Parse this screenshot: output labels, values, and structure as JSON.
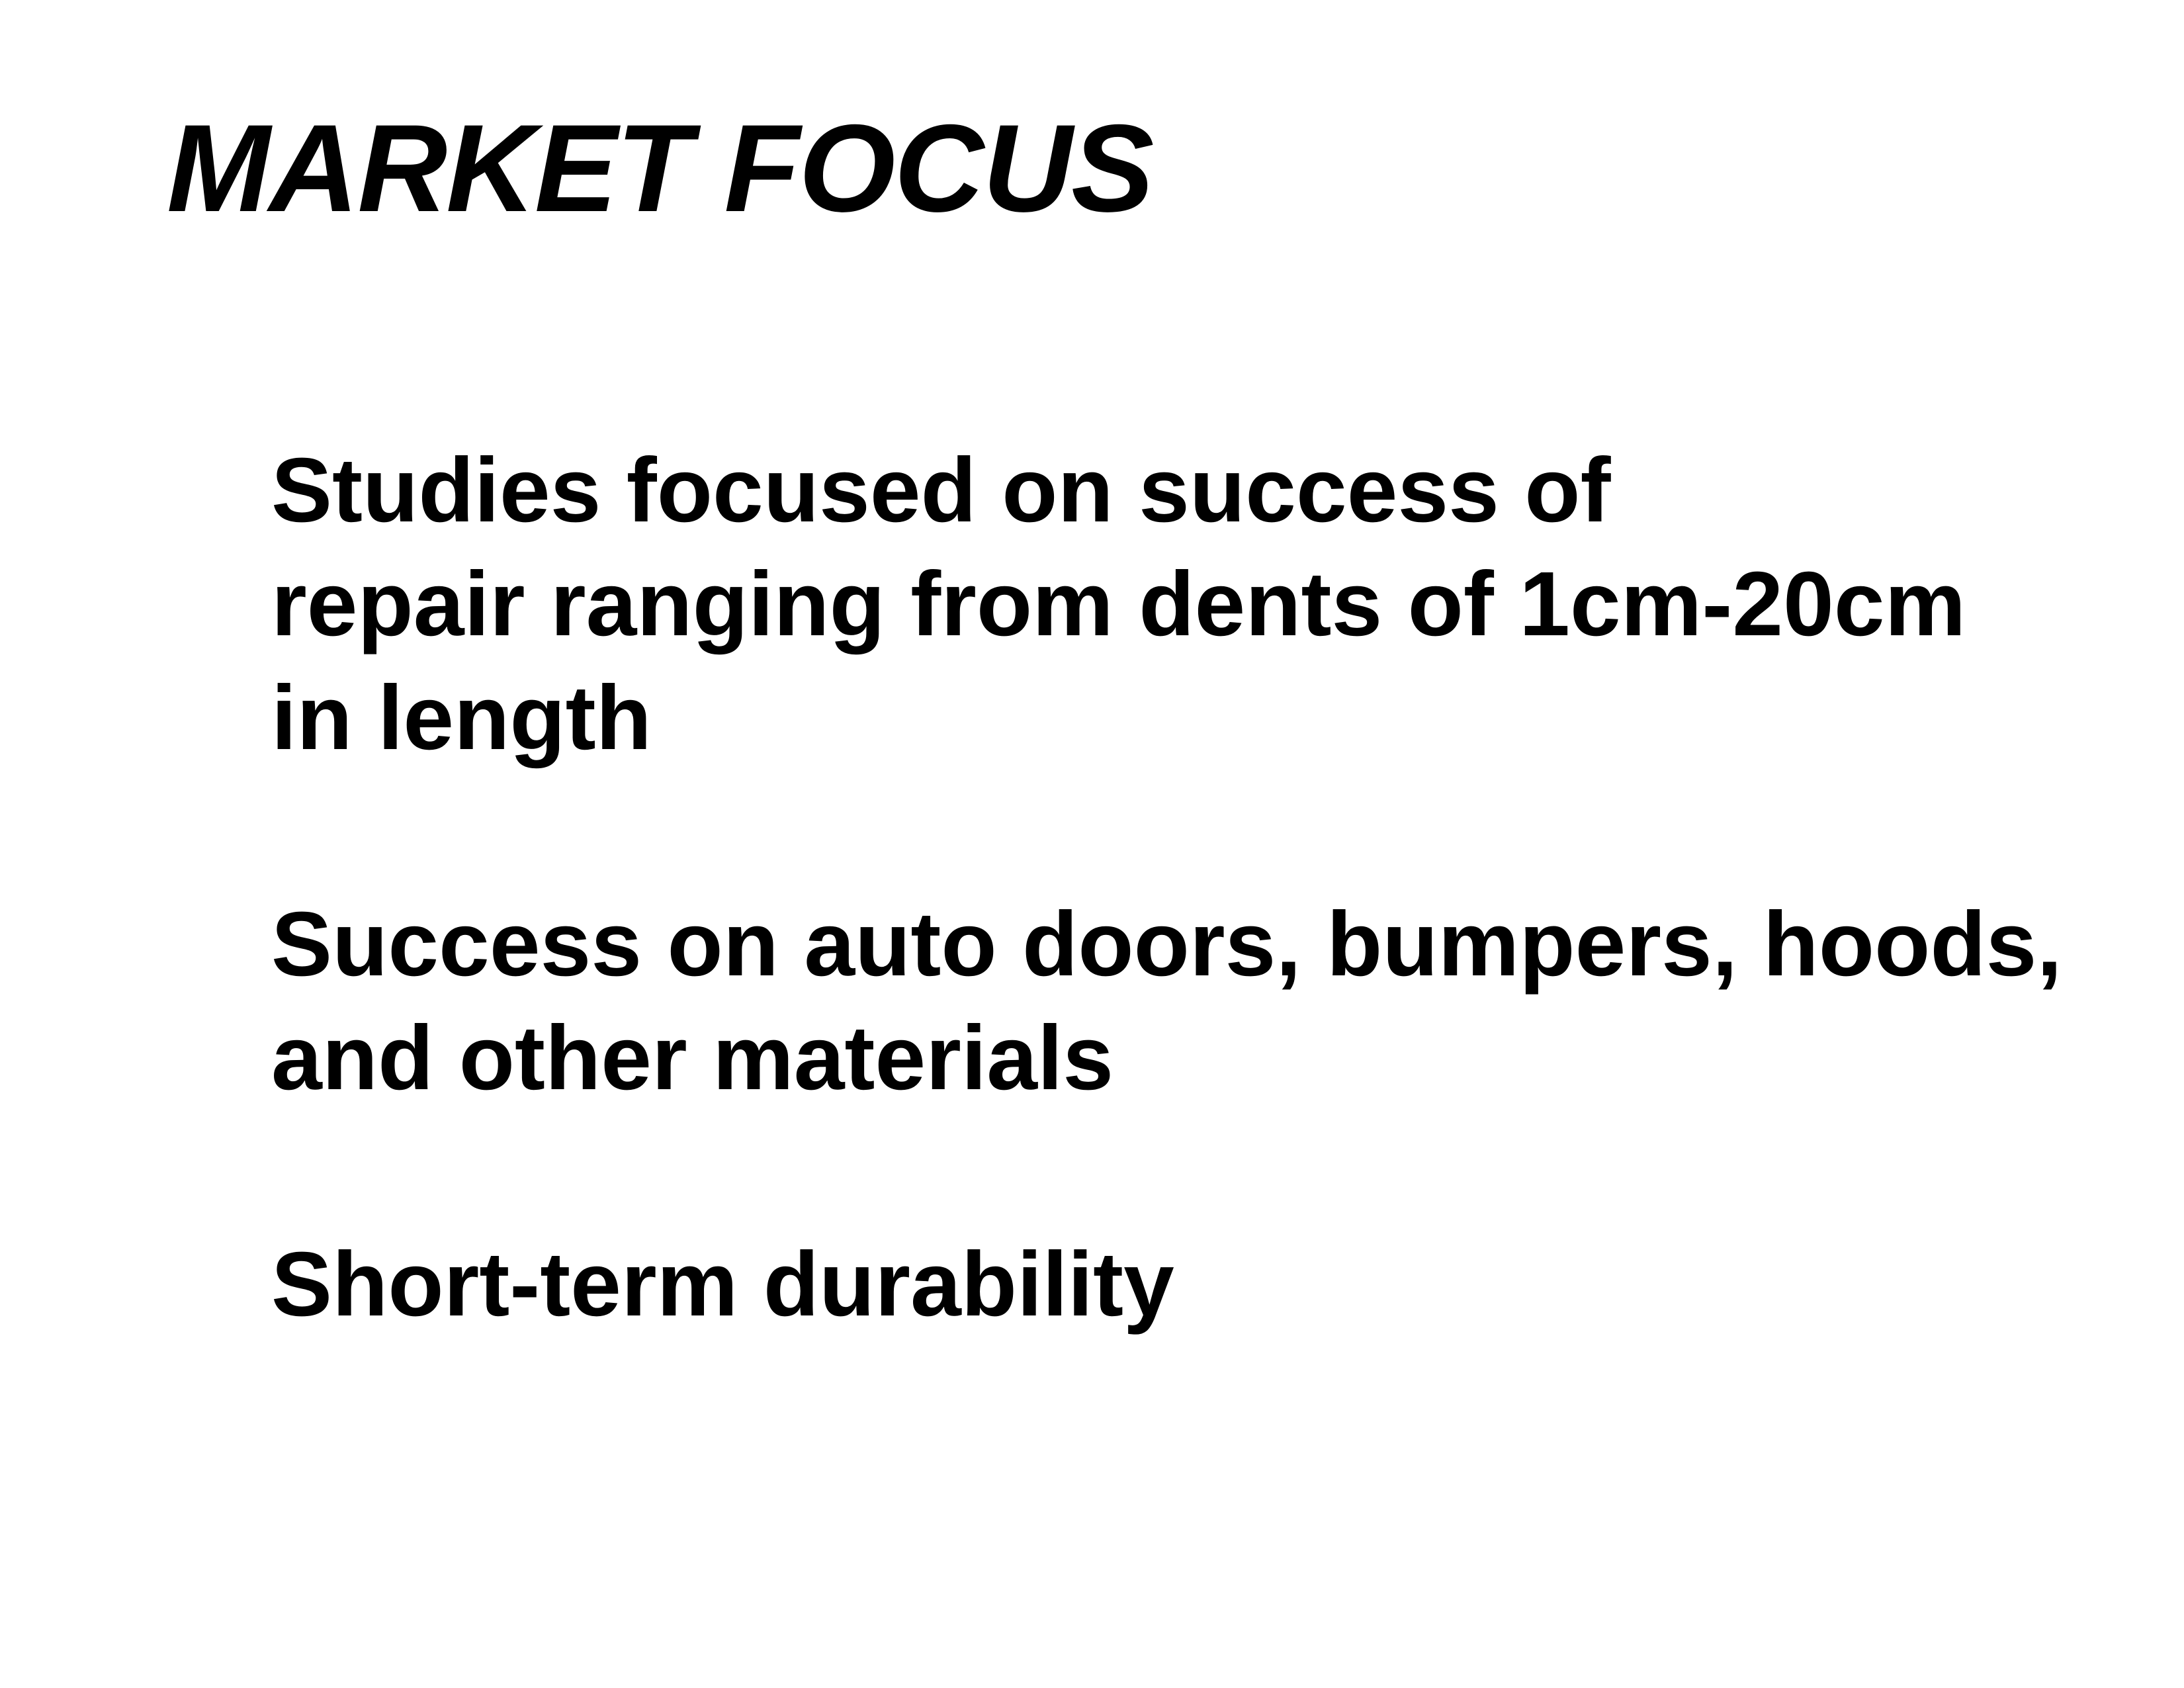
{
  "slide": {
    "title": "MARKET FOCUS",
    "points": [
      {
        "lines": [
          "Studies focused on success of",
          "repair ranging from dents of 1cm-20cm",
          "in length"
        ]
      },
      {
        "lines": [
          "Success on auto doors, bumpers, hoods,",
          "and other materials"
        ]
      },
      {
        "lines": [
          "Short-term durability"
        ]
      }
    ]
  }
}
